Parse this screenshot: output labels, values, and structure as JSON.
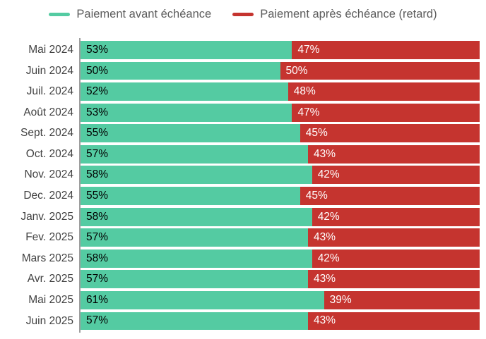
{
  "legend": [
    {
      "label": "Paiement avant échéance",
      "color": "#54cba2"
    },
    {
      "label": "Paiement après échéance (retard)",
      "color": "#c5342f"
    }
  ],
  "colors": {
    "green": "#54cba2",
    "red": "#c5342f",
    "axis_line": "#9e9e9e",
    "category_text": "#424242",
    "legend_text": "#5c5c5c",
    "value_text_on_green": "#000000",
    "value_text_on_red": "#ffffff",
    "background": "#ffffff"
  },
  "chart_data": {
    "type": "bar",
    "orientation": "horizontal",
    "stacked": true,
    "grid": false,
    "legend_position": "top",
    "xlim": [
      0,
      100
    ],
    "value_suffix": "%",
    "categories": [
      "Mai 2024",
      "Juin 2024",
      "Juil. 2024",
      "Août 2024",
      "Sept. 2024",
      "Oct. 2024",
      "Nov. 2024",
      "Dec. 2024",
      "Janv. 2025",
      "Fev. 2025",
      "Mars 2025",
      "Avr. 2025",
      "Mai 2025",
      "Juin 2025"
    ],
    "series": [
      {
        "name": "Paiement avant échéance",
        "color": "#54cba2",
        "values": [
          53,
          50,
          52,
          53,
          55,
          57,
          58,
          55,
          58,
          57,
          58,
          57,
          61,
          57
        ]
      },
      {
        "name": "Paiement après échéance (retard)",
        "color": "#c5342f",
        "values": [
          47,
          50,
          48,
          47,
          45,
          43,
          42,
          45,
          42,
          43,
          42,
          43,
          39,
          43
        ]
      }
    ]
  }
}
